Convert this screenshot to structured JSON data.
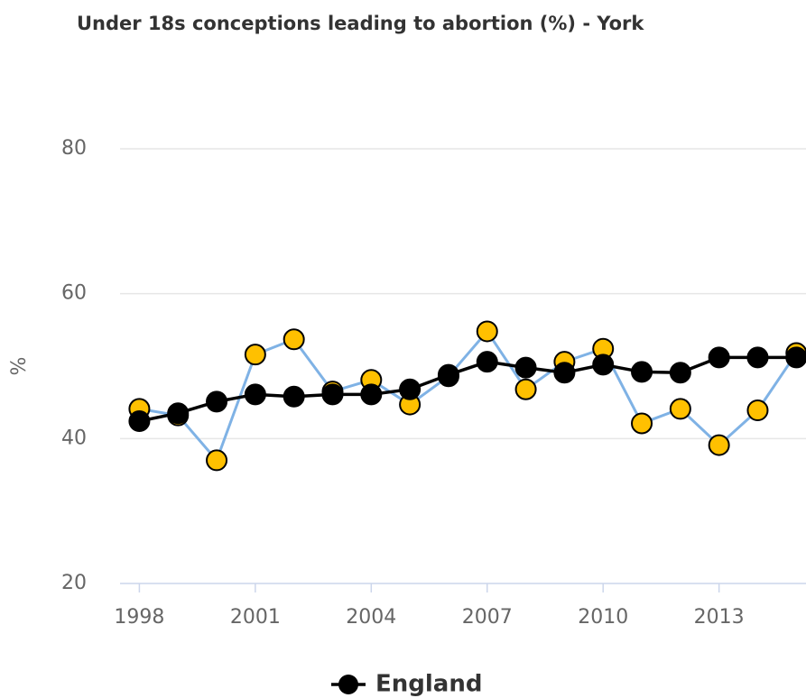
{
  "chart_data": {
    "type": "line",
    "title": "Under 18s conceptions leading to abortion (%) - York",
    "y_label": "%",
    "x": [
      1998,
      1999,
      2000,
      2001,
      2002,
      2003,
      2004,
      2005,
      2006,
      2007,
      2008,
      2009,
      2010,
      2011,
      2012,
      2013,
      2014,
      2015
    ],
    "series": [
      {
        "name": "England",
        "color": "#000000",
        "values": [
          42.4,
          43.5,
          45.1,
          46.1,
          45.8,
          46.1,
          46.1,
          46.8,
          48.8,
          50.6,
          49.8,
          49.1,
          50.2,
          49.2,
          49.1,
          51.2,
          51.2,
          51.2
        ]
      },
      {
        "color": "#7fb2e5",
        "marker_color": "#ffc000",
        "values": [
          44.1,
          43.2,
          37.0,
          51.6,
          53.7,
          46.5,
          48.1,
          44.7,
          48.6,
          54.8,
          46.8,
          50.6,
          52.4,
          42.1,
          44.1,
          39.1,
          43.9,
          51.8
        ]
      }
    ],
    "xlim": [
      1997.5,
      2015.25
    ],
    "xticks": [
      1998,
      2001,
      2004,
      2007,
      2010,
      2013
    ],
    "ylim": [
      20,
      80
    ],
    "yticks": [
      20,
      40,
      60,
      80
    ],
    "grid": true,
    "legend": "bottom"
  }
}
